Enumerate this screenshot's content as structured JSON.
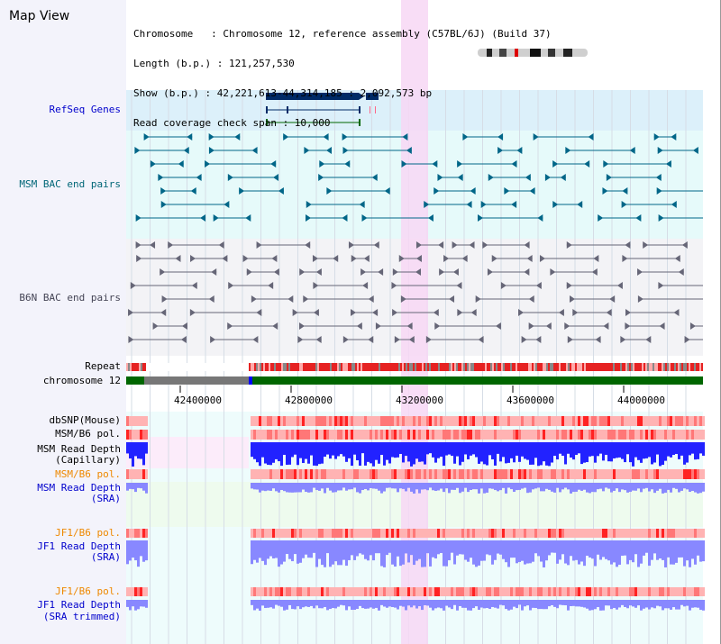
{
  "app": {
    "title": "Map View"
  },
  "info": {
    "line1": "Chromosome   : Chromosome 12, reference assembly (C57BL/6J) (Build 37)",
    "line2": "Length (b.p.) : 121,257,530",
    "line3": "Show (b.p.) : 42,221,613-44,314,185 : 2,092,573 bp",
    "line4": "Read coverage check span : 10,000"
  },
  "tracks": {
    "refseq": "RefSeq Genes",
    "msm_bac": "MSM BAC end pairs",
    "b6n_bac": "B6N BAC end pairs",
    "repeat": "Repeat",
    "chromosome": "chromosome 12",
    "dbsnp": "dbSNP(Mouse)",
    "msm_b6_pol_1": "MSM/B6 pol.",
    "msm_depth_cap_1": "MSM Read Depth",
    "msm_depth_cap_2": "(Capillary)",
    "msm_b6_pol_2": "MSM/B6 pol.",
    "msm_depth_sra_1": "MSM Read Depth",
    "msm_depth_sra_2": "(SRA)",
    "jf1_b6_pol_1": "JF1/B6 pol.",
    "jf1_depth_sra_1": "JF1 Read Depth",
    "jf1_depth_sra_2": "(SRA)",
    "jf1_b6_pol_2": "JF1/B6 pol.",
    "jf1_depth_trim_1": "JF1 Read Depth",
    "jf1_depth_trim_2": "(SRA trimmed)"
  },
  "axis": {
    "ticks": [
      "42400000",
      "42800000",
      "43200000",
      "43600000",
      "44000000"
    ]
  },
  "colors": {
    "refseq_bg": "#dcf0fa",
    "msm_bg": "#e6fafa",
    "b6n_bg": "#f3f3f6",
    "highlight": "#f7d7f5",
    "chrom_green": "#006600",
    "chrom_grey": "#777777",
    "gene_navy": "#002a66",
    "msm_teal": "#006688",
    "b6n_grey": "#666677",
    "depth_blue": "#2222ff",
    "depth_light_blue": "#8888ff",
    "snp_red": "#ff4444"
  }
}
